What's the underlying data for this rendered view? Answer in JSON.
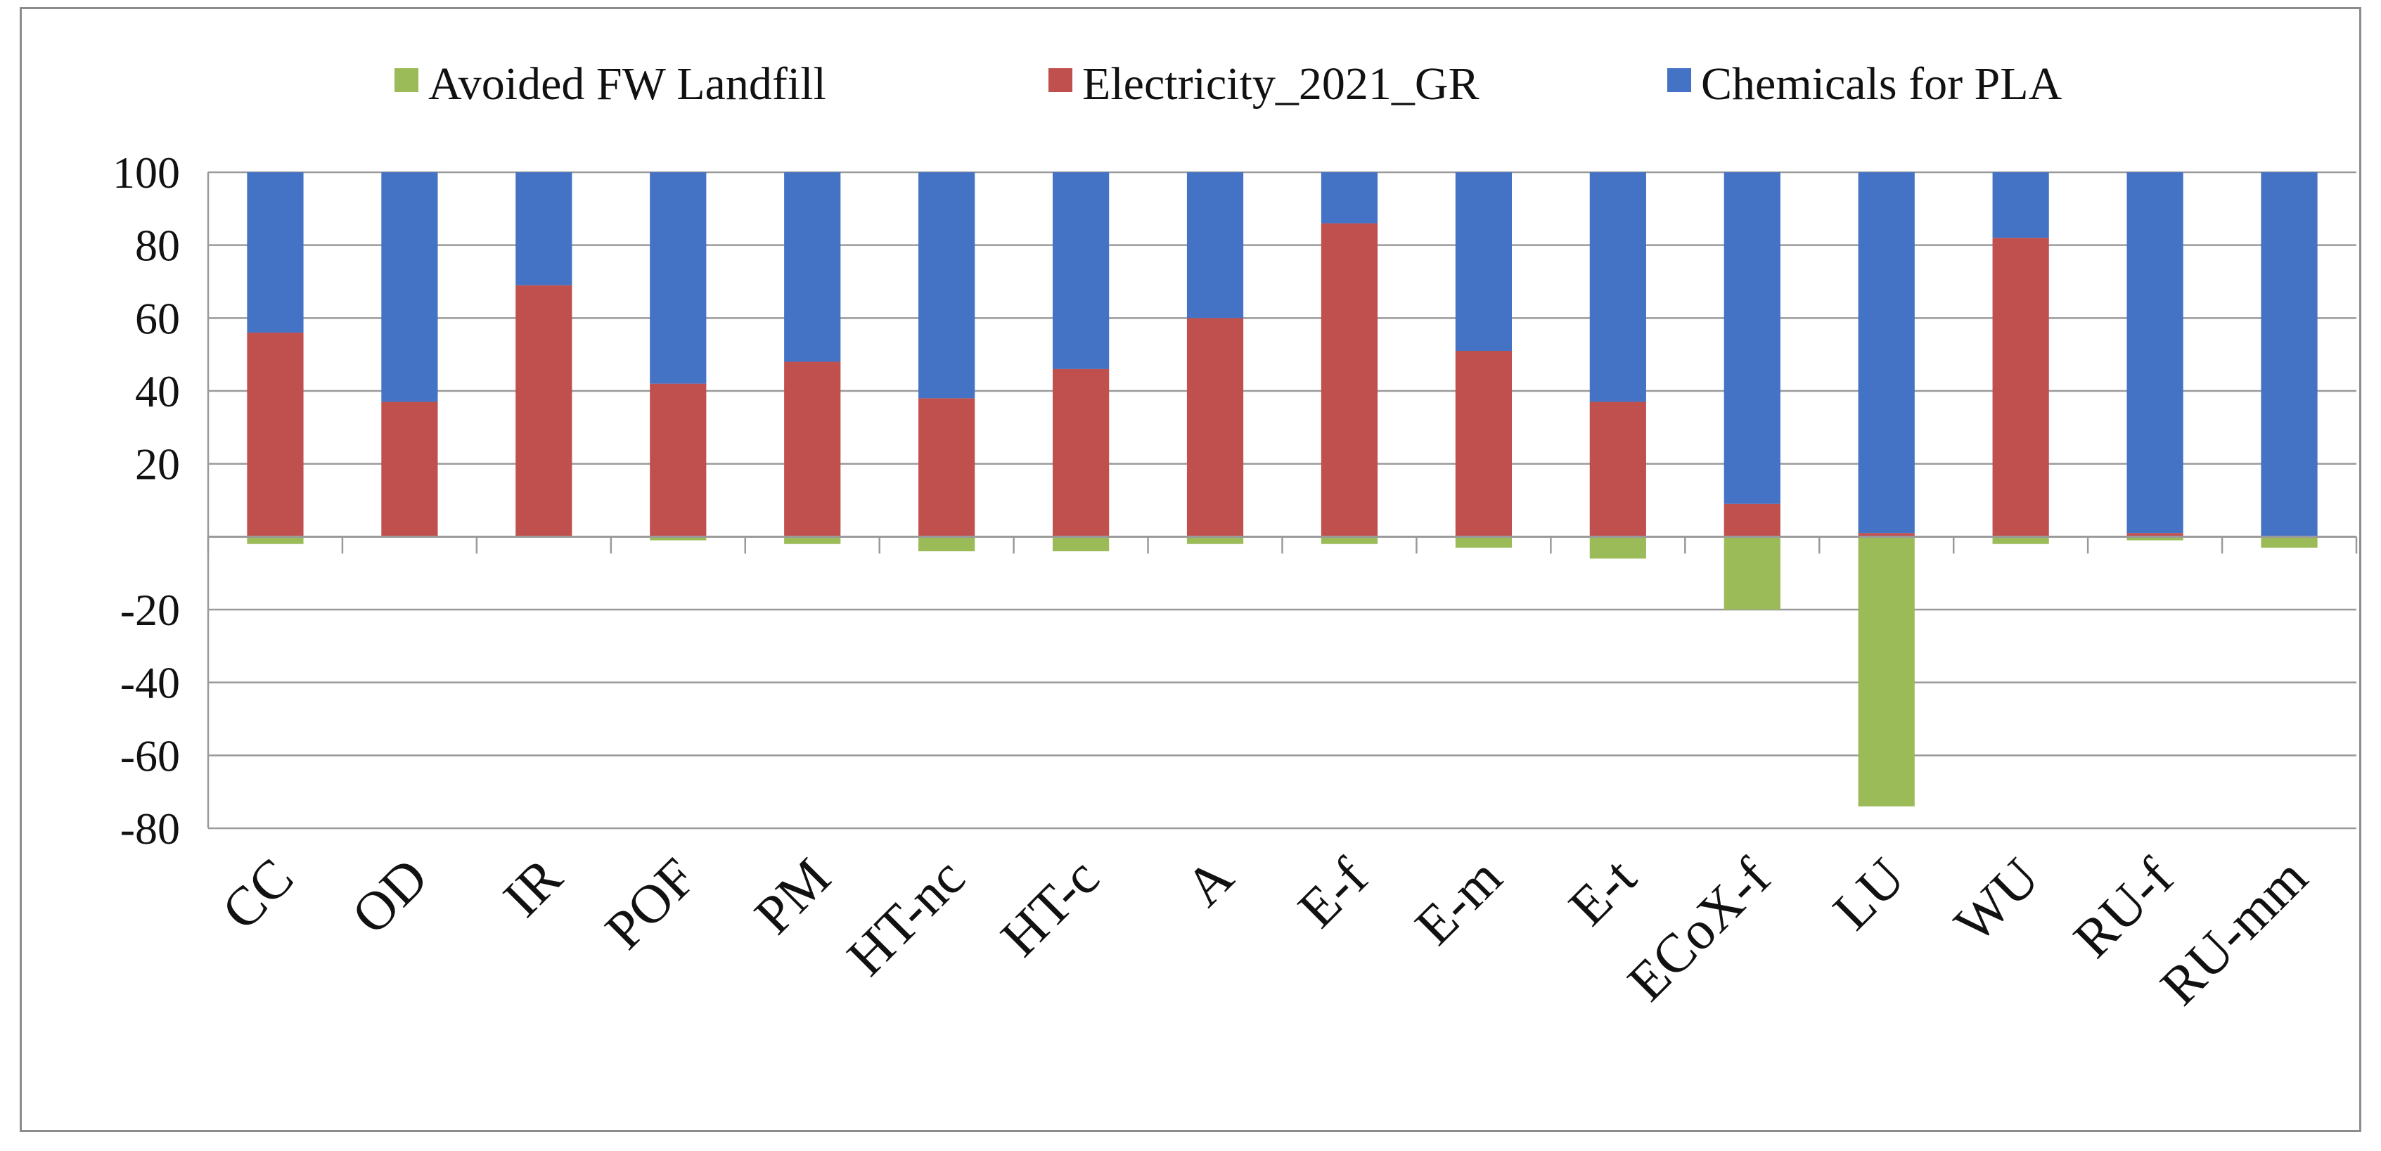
{
  "chart_data": {
    "type": "bar",
    "stacked": true,
    "title": "",
    "xlabel": "",
    "ylabel": "",
    "ylim": [
      -80,
      100
    ],
    "yticks": [
      -80,
      -60,
      -40,
      -20,
      20,
      40,
      60,
      80,
      100
    ],
    "grid": true,
    "legend_position": "top",
    "categories": [
      "CC",
      "OD",
      "IR",
      "POF",
      "PM",
      "HT-nc",
      "HT-c",
      "A",
      "E-f",
      "E-m",
      "E-t",
      "ECoX-f",
      "LU",
      "WU",
      "RU-f",
      "RU-mm"
    ],
    "series": [
      {
        "name": "Avoided FW Landfill",
        "color": "#9bbb59",
        "values": [
          -2,
          0,
          0,
          -1,
          -2,
          -4,
          -4,
          -2,
          -2,
          -3,
          -6,
          -20,
          -74,
          -2,
          -1,
          -3
        ]
      },
      {
        "name": "Electricity_2021_GR",
        "color": "#c0504d",
        "values": [
          56,
          37,
          69,
          42,
          48,
          38,
          46,
          60,
          86,
          51,
          37,
          9,
          1,
          82,
          1,
          0
        ]
      },
      {
        "name": "Chemicals for PLA",
        "color": "#4472c4",
        "values": [
          44,
          63,
          31,
          58,
          52,
          62,
          54,
          40,
          14,
          49,
          63,
          91,
          99,
          18,
          99,
          100
        ]
      }
    ]
  }
}
